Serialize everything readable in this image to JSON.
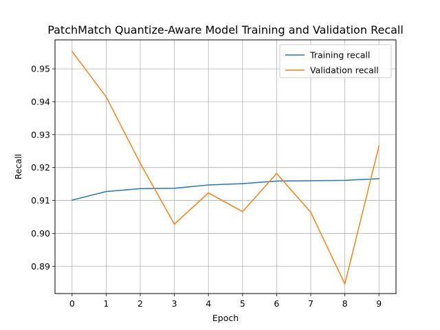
{
  "chart_data": {
    "type": "line",
    "title": "PatchMatch Quantize-Aware Model Training and Validation Recall",
    "xlabel": "Epoch",
    "ylabel": "Recall",
    "x": [
      0,
      1,
      2,
      3,
      4,
      5,
      6,
      7,
      8,
      9
    ],
    "xticks": [
      "0",
      "1",
      "2",
      "3",
      "4",
      "5",
      "6",
      "7",
      "8",
      "9"
    ],
    "yticks": [
      "0.89",
      "0.90",
      "0.91",
      "0.92",
      "0.93",
      "0.94",
      "0.95"
    ],
    "xlim": [
      -0.5,
      9.5
    ],
    "ylim": [
      0.8817,
      0.9588
    ],
    "grid": true,
    "legend_position": "top-right",
    "series": [
      {
        "name": "Training recall",
        "color": "#1f77b4",
        "values": [
          0.9101,
          0.9127,
          0.9136,
          0.9137,
          0.9147,
          0.9151,
          0.9159,
          0.916,
          0.9161,
          0.9166
        ]
      },
      {
        "name": "Validation recall",
        "color": "#ff7f0e",
        "values": [
          0.9553,
          0.9415,
          0.9213,
          0.9028,
          0.9123,
          0.9066,
          0.9182,
          0.9064,
          0.8846,
          0.9265
        ]
      }
    ]
  }
}
